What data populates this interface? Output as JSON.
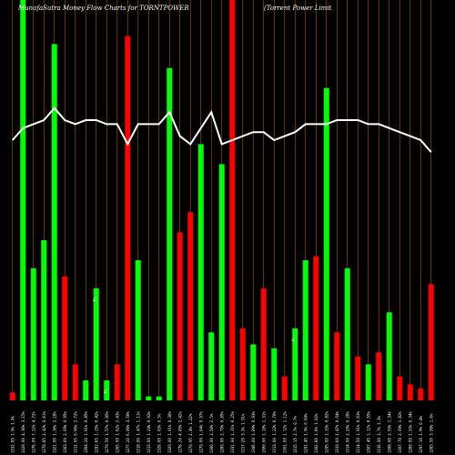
{
  "chart_data": {
    "type": "bar",
    "title": "MunafaSutra  Money Flow  Charts for TORNTPOWER",
    "subtitle": "(Torrent Power Limit",
    "background": "#000000",
    "colors": {
      "up": "#00ff00",
      "down": "#ff0000",
      "line": "#ffffff",
      "grid": "#b35900"
    },
    "grid": true,
    "ylim": [
      0,
      100
    ],
    "categories": [
      "1332.85 1.9% 1.9%",
      "1329.00 4.36% 3.15%",
      "1276.00 7.22% 4.72%",
      "1278.85 2.42% 0.61%",
      "1321.00 1.36% 3.18%",
      "1303.60 2.09% 0.95%",
      "1311.05 0.96% 2.72%",
      "1304.20 1.01% 0.85%",
      "1292.65 1.25% 0.42%",
      "1279.50 1.57% 0.85%",
      "1265.00 1.62% 2.43%",
      "1277.20 6.06% 3.56%",
      "1318.00 1.47% 1.11%",
      "1313.00 1.24% 0.92%",
      "1326.00 1.03% 0.5%",
      "1329.00 1.01% 0.38%",
      "1276.20 4.89% 2.42%",
      "1270.95 2.4% 1.22%",
      "1279.00 1.04% 0.57%",
      "1306.00 2.58% 2.5%",
      "1289.00 2.75% 0.85%",
      "1331.00 1.21% 0.25%",
      "1317.20 3.3% 1.91%",
      "1306.00 1.89% 0.93%",
      "1300.00 1.18% 1.31%",
      "1313.00 1.22% 0.78%",
      "1301.00 1.12% 1.12%",
      "1315.15 2.7% 0.7%",
      "1291.45 1.9% 0.04%",
      "1302.80 1.6% 1.02%",
      "1295.00 1.33% 0.82%",
      "1319.60 1.47% 0.54%",
      "1314.50 2.29% 0.28%",
      "1314.50 1.91% 0.63%",
      "1307.45 1.12% 0.55%",
      "1316.00 2.7% 1.3%",
      "1308.00 2.59% 1.34%",
      "1307.70 2.09% 1.82%",
      "1288.00 1.33% 0.34%",
      "1297.10 1.9% 0.4%",
      "1283.50 3.58% 1.6%"
    ],
    "values": [
      2,
      100,
      33,
      40,
      89,
      31,
      9,
      5,
      28,
      5,
      9,
      91,
      35,
      1,
      1,
      83,
      42,
      47,
      64,
      17,
      59,
      100,
      18,
      14,
      28,
      13,
      6,
      18,
      35,
      36,
      78,
      17,
      33,
      11,
      9,
      12,
      22,
      6,
      4,
      3,
      29
    ],
    "directions": [
      "down",
      "up",
      "up",
      "up",
      "up",
      "down",
      "down",
      "up",
      "up",
      "up",
      "down",
      "down",
      "up",
      "up",
      "up",
      "up",
      "down",
      "down",
      "up",
      "up",
      "up",
      "down",
      "down",
      "up",
      "down",
      "up",
      "down",
      "up",
      "up",
      "down",
      "up",
      "down",
      "up",
      "down",
      "up",
      "down",
      "up",
      "down",
      "down",
      "down",
      "down"
    ],
    "line_values": [
      65,
      68,
      69,
      70,
      73,
      70,
      69,
      70,
      70,
      69,
      69,
      64,
      69,
      69,
      69,
      72,
      66,
      64,
      68,
      72,
      64,
      65,
      66,
      67,
      67,
      65,
      66,
      67,
      69,
      69,
      69,
      70,
      70,
      70,
      69,
      69,
      68,
      67,
      66,
      65,
      62
    ],
    "bar_labels": [
      {
        "index": 8,
        "text": "Ei"
      },
      {
        "index": 9,
        "text": "Ei"
      },
      {
        "index": 27,
        "text": "Ei"
      }
    ]
  }
}
